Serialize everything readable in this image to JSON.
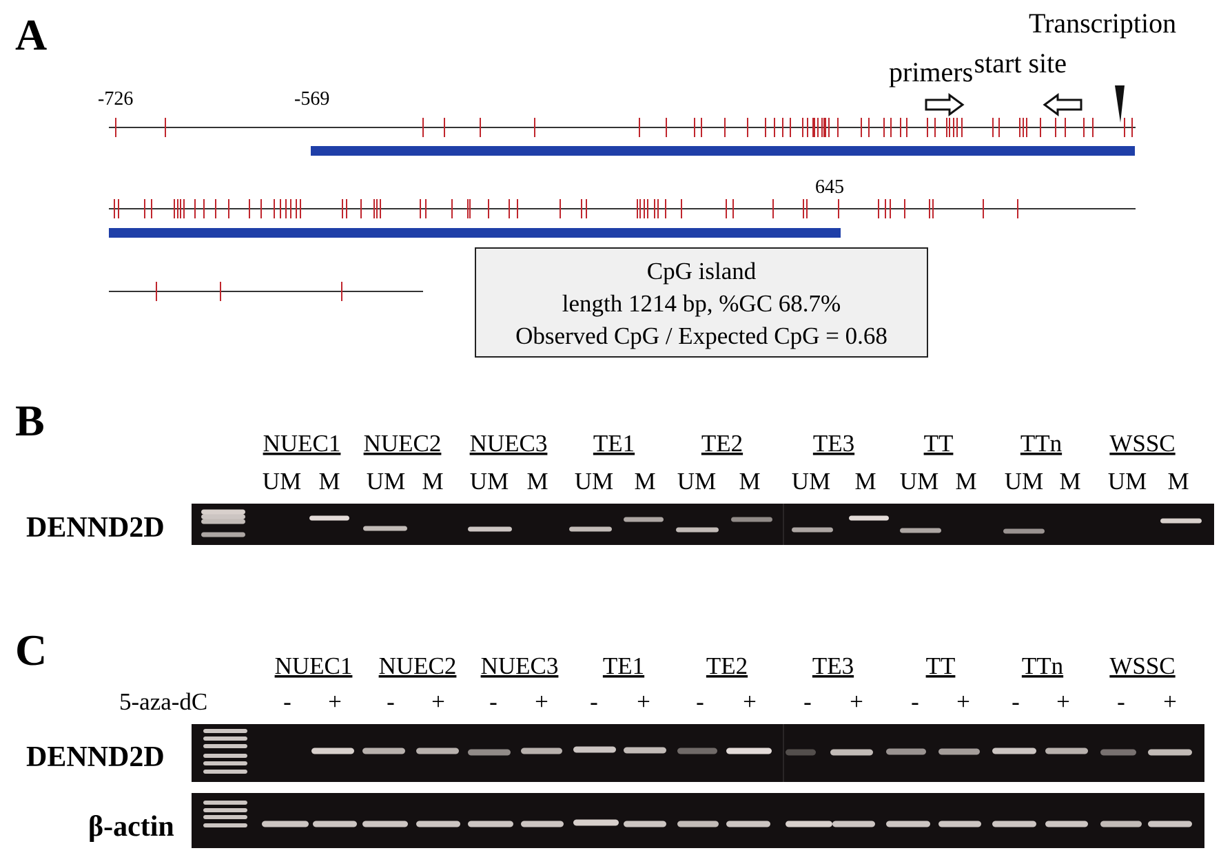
{
  "panels": {
    "a": "A",
    "b": "B",
    "c": "C"
  },
  "panel_a": {
    "positions": {
      "p726": "-726",
      "p569": "-569",
      "p645": "645"
    },
    "primers_label": "primers",
    "tss_label_line1": "Transcription",
    "tss_label_line2": "start site",
    "info": {
      "line1": "CpG island",
      "line2": "length 1214 bp, %GC 68.7%",
      "line3": "Observed CpG / Expected CpG = 0.68"
    },
    "colors": {
      "cpg_tick": "#c0262d",
      "island_bar": "#1f3fa8",
      "seq_line": "#333333"
    }
  },
  "panel_b": {
    "gene": "DENND2D",
    "samples": [
      "NUEC1",
      "NUEC2",
      "NUEC3",
      "TE1",
      "TE2",
      "TE3",
      "TT",
      "TTn",
      "WSSC"
    ],
    "lane_um": "UM",
    "lane_m": "M"
  },
  "panel_c": {
    "treatment": "5-aza-dC",
    "gene": "DENND2D",
    "control": "β-actin",
    "samples": [
      "NUEC1",
      "NUEC2",
      "NUEC3",
      "TE1",
      "TE2",
      "TE3",
      "TT",
      "TTn",
      "WSSC"
    ],
    "minus": "-",
    "plus": "+"
  }
}
